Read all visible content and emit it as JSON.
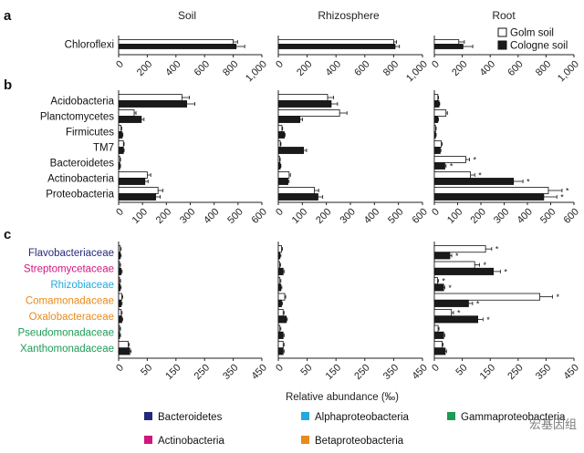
{
  "columns": [
    "Soil",
    "Rhizosphere",
    "Root"
  ],
  "legend": {
    "golm": "Golm soil",
    "cologne": "Cologne soil"
  },
  "xlabel": "Relative abundance (‰)",
  "colors": {
    "bacteroidetes": "#25297a",
    "actinobacteria": "#d0167f",
    "alphaproteobacteria": "#24a9dc",
    "betaproteobacteria": "#e88a1d",
    "gammaproteobacteria": "#1d9b55",
    "golm": "#ffffff",
    "cologne": "#1a1a1a"
  },
  "phylum_legend": [
    {
      "key": "bacteroidetes",
      "label": "Bacteroidetes"
    },
    {
      "key": "alphaproteobacteria",
      "label": "Alphaproteobacteria"
    },
    {
      "key": "gammaproteobacteria",
      "label": "Gammaproteobacteria"
    },
    {
      "key": "actinobacteria",
      "label": "Actinobacteria"
    },
    {
      "key": "betaproteobacteria",
      "label": "Betaproteobacteria"
    }
  ],
  "watermark": "宏基因组",
  "chart_data": [
    {
      "type": "bar",
      "panel": "a",
      "orientation": "horizontal",
      "categories": [
        "Chloroflexi"
      ],
      "xlim": [
        0,
        1000
      ],
      "ticks": [
        "0",
        "200",
        "400",
        "600",
        "800",
        "1,000"
      ],
      "series": [
        {
          "name": "Golm soil",
          "soil": [
            800
          ],
          "rhizosphere": [
            800
          ],
          "root": [
            175
          ]
        },
        {
          "name": "Cologne soil",
          "soil": [
            820
          ],
          "rhizosphere": [
            810
          ],
          "root": [
            205
          ]
        }
      ],
      "errors": {
        "golm": {
          "soil": [
            30
          ],
          "rhizosphere": [
            20
          ],
          "root": [
            40
          ]
        },
        "cologne": {
          "soil": [
            60
          ],
          "rhizosphere": [
            30
          ],
          "root": [
            70
          ]
        }
      }
    },
    {
      "type": "bar",
      "panel": "b",
      "orientation": "horizontal",
      "categories": [
        "Acidobacteria",
        "Planctomycetes",
        "Firmicutes",
        "TM7",
        "Bacteroidetes",
        "Actinobacteria",
        "Proteobacteria"
      ],
      "xlim": [
        0,
        600
      ],
      "ticks": [
        "0",
        "100",
        "200",
        "300",
        "400",
        "500",
        "600"
      ],
      "series": [
        {
          "name": "Golm soil",
          "soil": [
            265,
            65,
            10,
            20,
            5,
            120,
            165
          ],
          "rhizosphere": [
            205,
            255,
            15,
            8,
            5,
            45,
            150
          ],
          "root": [
            15,
            50,
            5,
            30,
            135,
            155,
            490
          ]
        },
        {
          "name": "Cologne soil",
          "soil": [
            285,
            95,
            15,
            20,
            5,
            110,
            155
          ],
          "rhizosphere": [
            220,
            90,
            25,
            105,
            8,
            40,
            165
          ],
          "root": [
            20,
            15,
            5,
            25,
            45,
            340,
            470
          ]
        }
      ],
      "significant_root": [
        false,
        false,
        false,
        false,
        true,
        true,
        true
      ]
    },
    {
      "type": "bar",
      "panel": "c",
      "orientation": "horizontal",
      "categories": [
        "Flavobacteriaceae",
        "Streptomycetaceae",
        "Rhizobiaceae",
        "Comamonadaceae",
        "Oxalobacteraceae",
        "Pseudomonadaceae",
        "Xanthomonadaceae"
      ],
      "phyla": [
        "bacteroidetes",
        "actinobacteria",
        "alphaproteobacteria",
        "betaproteobacteria",
        "betaproteobacteria",
        "gammaproteobacteria",
        "gammaproteobacteria"
      ],
      "xlim": [
        0,
        450
      ],
      "ticks": [
        "0",
        "50",
        "150",
        "250",
        "350",
        "450"
      ],
      "series": [
        {
          "name": "Golm soil",
          "soil": [
            5,
            3,
            3,
            10,
            8,
            3,
            30
          ],
          "rhizosphere": [
            10,
            4,
            5,
            20,
            15,
            5,
            15
          ],
          "root": [
            165,
            130,
            10,
            340,
            55,
            12,
            25
          ]
        },
        {
          "name": "Cologne soil",
          "soil": [
            5,
            8,
            5,
            8,
            10,
            3,
            35
          ],
          "rhizosphere": [
            5,
            15,
            8,
            10,
            25,
            15,
            15
          ],
          "root": [
            50,
            190,
            30,
            110,
            140,
            30,
            35
          ]
        }
      ],
      "significant_root": [
        true,
        true,
        true,
        true,
        true,
        false,
        false
      ]
    }
  ]
}
